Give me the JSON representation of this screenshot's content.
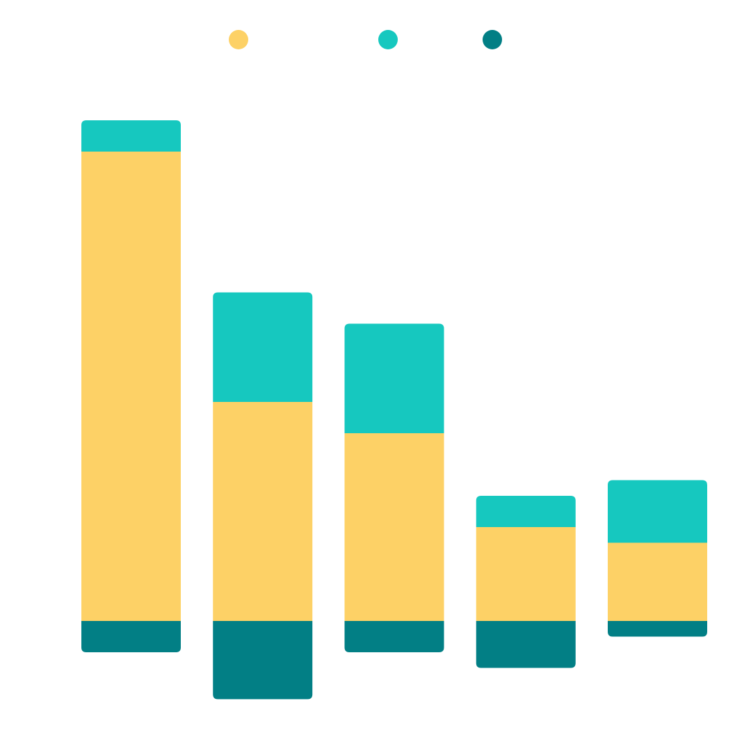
{
  "colors": {
    "series_1": "#FDD166",
    "series_2": "#16C8BF",
    "series_3": "#027F85",
    "background": "#FFFFFF"
  },
  "chart_data": {
    "type": "bar",
    "stacked": true,
    "title": "",
    "xlabel": "",
    "ylabel": "",
    "categories": [
      "",
      "",
      "",
      "",
      ""
    ],
    "ylim": [
      -2.5,
      16
    ],
    "grid": false,
    "legend_position": "top-center",
    "series": [
      {
        "values": [
          15,
          7,
          6,
          3,
          2.5
        ],
        "color": "#FDD166"
      },
      {
        "values": [
          1,
          3.5,
          3.5,
          1,
          2
        ],
        "color": "#16C8BF"
      },
      {
        "values": [
          -1,
          -2.5,
          -1,
          -1.5,
          -0.5
        ],
        "color": "#027F85"
      }
    ]
  }
}
